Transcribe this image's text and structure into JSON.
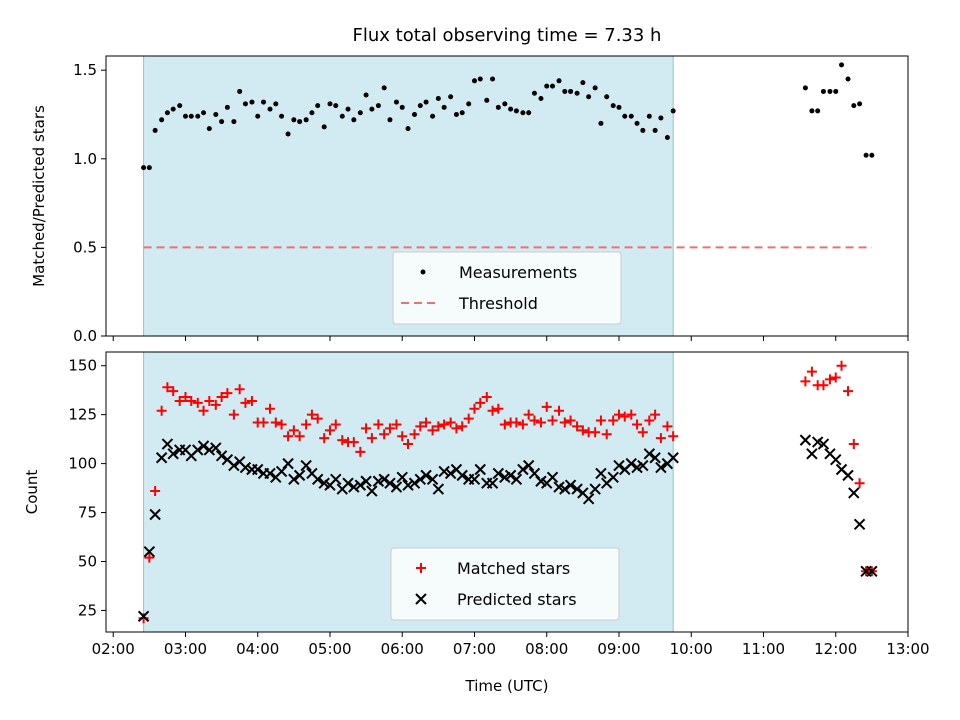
{
  "chart_data": {
    "title": "Flux total observing time = 7.33 h",
    "xlabel": "Time (UTC)",
    "xlim_hours": [
      1.9,
      13.0
    ],
    "x_tick_labels": [
      "02:00",
      "03:00",
      "04:00",
      "05:00",
      "06:00",
      "07:00",
      "08:00",
      "09:00",
      "10:00",
      "11:00",
      "12:00",
      "13:00"
    ],
    "x_tick_values": [
      2,
      3,
      4,
      5,
      6,
      7,
      8,
      9,
      10,
      11,
      12,
      13
    ],
    "observing_window_hours": [
      2.42,
      9.75
    ],
    "observing_window_color": "#add8e6",
    "panels": [
      {
        "type": "scatter",
        "ylabel": "Matched/Predicted stars",
        "ylim": [
          0.0,
          1.58
        ],
        "y_ticks": [
          0.0,
          0.5,
          1.0,
          1.5
        ],
        "y_tick_labels": [
          "0.0",
          "0.5",
          "1.0",
          "1.5"
        ],
        "threshold": {
          "value": 0.5,
          "x_range": [
            2.42,
            12.5
          ],
          "color": "#f07070"
        },
        "legend": {
          "position": "lower center",
          "entries": [
            "Measurements",
            "Threshold"
          ]
        },
        "series": [
          {
            "name": "Measurements",
            "marker": "dot",
            "color": "#000000",
            "x": [
              2.42,
              2.5,
              2.58,
              2.67,
              2.75,
              2.83,
              2.92,
              3.0,
              3.08,
              3.17,
              3.25,
              3.33,
              3.42,
              3.5,
              3.58,
              3.67,
              3.75,
              3.83,
              3.92,
              4.0,
              4.08,
              4.17,
              4.25,
              4.33,
              4.42,
              4.5,
              4.58,
              4.67,
              4.75,
              4.83,
              4.92,
              5.0,
              5.08,
              5.17,
              5.25,
              5.33,
              5.42,
              5.5,
              5.58,
              5.67,
              5.75,
              5.83,
              5.92,
              6.0,
              6.08,
              6.17,
              6.25,
              6.33,
              6.42,
              6.5,
              6.58,
              6.67,
              6.75,
              6.83,
              6.92,
              7.0,
              7.08,
              7.17,
              7.25,
              7.33,
              7.42,
              7.5,
              7.58,
              7.67,
              7.75,
              7.83,
              7.92,
              8.0,
              8.08,
              8.17,
              8.25,
              8.33,
              8.42,
              8.5,
              8.58,
              8.67,
              8.75,
              8.83,
              8.92,
              9.0,
              9.08,
              9.17,
              9.25,
              9.33,
              9.42,
              9.5,
              9.58,
              9.67,
              9.75,
              11.58,
              11.67,
              11.75,
              11.83,
              11.92,
              12.0,
              12.08,
              12.17,
              12.25,
              12.33,
              12.42,
              12.5
            ],
            "y": [
              0.95,
              0.95,
              1.16,
              1.22,
              1.26,
              1.28,
              1.3,
              1.24,
              1.24,
              1.24,
              1.26,
              1.17,
              1.25,
              1.21,
              1.29,
              1.21,
              1.38,
              1.31,
              1.32,
              1.24,
              1.32,
              1.28,
              1.31,
              1.24,
              1.14,
              1.22,
              1.21,
              1.22,
              1.26,
              1.3,
              1.18,
              1.31,
              1.3,
              1.24,
              1.28,
              1.22,
              1.26,
              1.36,
              1.28,
              1.3,
              1.4,
              1.22,
              1.32,
              1.29,
              1.17,
              1.25,
              1.3,
              1.32,
              1.24,
              1.34,
              1.29,
              1.35,
              1.25,
              1.26,
              1.31,
              1.44,
              1.45,
              1.33,
              1.45,
              1.29,
              1.31,
              1.28,
              1.27,
              1.26,
              1.26,
              1.37,
              1.34,
              1.41,
              1.41,
              1.44,
              1.38,
              1.38,
              1.37,
              1.43,
              1.35,
              1.4,
              1.2,
              1.35,
              1.3,
              1.29,
              1.24,
              1.24,
              1.2,
              1.16,
              1.24,
              1.16,
              1.23,
              1.12,
              1.27,
              1.4,
              1.27,
              1.27,
              1.38,
              1.38,
              1.38,
              1.53,
              1.45,
              1.3,
              1.31,
              1.02,
              1.02
            ]
          }
        ]
      },
      {
        "type": "scatter",
        "ylabel": "Count",
        "ylim": [
          14,
          157
        ],
        "y_ticks": [
          25,
          50,
          75,
          100,
          125,
          150
        ],
        "y_tick_labels": [
          "25",
          "50",
          "75",
          "100",
          "125",
          "150"
        ],
        "legend": {
          "position": "lower center",
          "entries": [
            "Matched stars",
            "Predicted stars"
          ]
        },
        "series": [
          {
            "name": "Matched stars",
            "marker": "plus",
            "color": "#ff0000",
            "x": [
              2.42,
              2.5,
              2.58,
              2.67,
              2.75,
              2.83,
              2.92,
              3.0,
              3.08,
              3.17,
              3.25,
              3.33,
              3.42,
              3.5,
              3.58,
              3.67,
              3.75,
              3.83,
              3.92,
              4.0,
              4.08,
              4.17,
              4.25,
              4.33,
              4.42,
              4.5,
              4.58,
              4.67,
              4.75,
              4.83,
              4.92,
              5.0,
              5.08,
              5.17,
              5.25,
              5.33,
              5.42,
              5.5,
              5.58,
              5.67,
              5.75,
              5.83,
              5.92,
              6.0,
              6.08,
              6.17,
              6.25,
              6.33,
              6.42,
              6.5,
              6.58,
              6.67,
              6.75,
              6.83,
              6.92,
              7.0,
              7.08,
              7.17,
              7.25,
              7.33,
              7.42,
              7.5,
              7.58,
              7.67,
              7.75,
              7.83,
              7.92,
              8.0,
              8.08,
              8.17,
              8.25,
              8.33,
              8.42,
              8.5,
              8.58,
              8.67,
              8.75,
              8.83,
              8.92,
              9.0,
              9.08,
              9.17,
              9.25,
              9.33,
              9.42,
              9.5,
              9.58,
              9.67,
              9.75,
              11.58,
              11.67,
              11.75,
              11.83,
              11.92,
              12.0,
              12.08,
              12.17,
              12.25,
              12.33,
              12.42,
              12.5
            ],
            "y": [
              21,
              52,
              86,
              127,
              139,
              137,
              132,
              134,
              132,
              131,
              127,
              132,
              130,
              134,
              136,
              125,
              138,
              131,
              132,
              121,
              121,
              128,
              121,
              120,
              114,
              117,
              114,
              120,
              125,
              123,
              113,
              117,
              120,
              112,
              111,
              111,
              106,
              118,
              113,
              120,
              115,
              118,
              120,
              114,
              110,
              115,
              119,
              121,
              117,
              119,
              120,
              121,
              118,
              119,
              123,
              128,
              131,
              134,
              127,
              128,
              120,
              121,
              121,
              120,
              125,
              122,
              121,
              129,
              122,
              127,
              121,
              122,
              119,
              117,
              116,
              116,
              122,
              115,
              122,
              125,
              124,
              125,
              120,
              116,
              122,
              125,
              113,
              119,
              114,
              142,
              147,
              140,
              140,
              143,
              144,
              150,
              137,
              110,
              90,
              45,
              45
            ]
          },
          {
            "name": "Predicted stars",
            "marker": "x",
            "color": "#000000",
            "x": [
              2.42,
              2.5,
              2.58,
              2.67,
              2.75,
              2.83,
              2.92,
              3.0,
              3.08,
              3.17,
              3.25,
              3.33,
              3.42,
              3.5,
              3.58,
              3.67,
              3.75,
              3.83,
              3.92,
              4.0,
              4.08,
              4.17,
              4.25,
              4.33,
              4.42,
              4.5,
              4.58,
              4.67,
              4.75,
              4.83,
              4.92,
              5.0,
              5.08,
              5.17,
              5.25,
              5.33,
              5.42,
              5.5,
              5.58,
              5.67,
              5.75,
              5.83,
              5.92,
              6.0,
              6.08,
              6.17,
              6.25,
              6.33,
              6.42,
              6.5,
              6.58,
              6.67,
              6.75,
              6.83,
              6.92,
              7.0,
              7.08,
              7.17,
              7.25,
              7.33,
              7.42,
              7.5,
              7.58,
              7.67,
              7.75,
              7.83,
              7.92,
              8.0,
              8.08,
              8.17,
              8.25,
              8.33,
              8.42,
              8.5,
              8.58,
              8.67,
              8.75,
              8.83,
              8.92,
              9.0,
              9.08,
              9.17,
              9.25,
              9.33,
              9.42,
              9.5,
              9.58,
              9.67,
              9.75,
              11.58,
              11.67,
              11.75,
              11.83,
              11.92,
              12.0,
              12.08,
              12.17,
              12.25,
              12.33,
              12.42,
              12.5
            ],
            "y": [
              22,
              55,
              74,
              103,
              110,
              105,
              107,
              107,
              104,
              107,
              109,
              107,
              108,
              104,
              102,
              99,
              101,
              98,
              97,
              97,
              95,
              95,
              93,
              96,
              100,
              92,
              94,
              99,
              95,
              92,
              90,
              89,
              92,
              87,
              90,
              88,
              89,
              91,
              86,
              91,
              92,
              90,
              88,
              93,
              89,
              90,
              92,
              94,
              92,
              87,
              96,
              95,
              97,
              94,
              92,
              92,
              97,
              90,
              90,
              95,
              93,
              94,
              92,
              97,
              99,
              95,
              91,
              90,
              93,
              88,
              87,
              89,
              87,
              85,
              82,
              87,
              95,
              90,
              93,
              99,
              97,
              100,
              98,
              99,
              105,
              103,
              98,
              100,
              103,
              112,
              105,
              111,
              110,
              105,
              102,
              97,
              94,
              85,
              69,
              45,
              45
            ]
          }
        ]
      }
    ]
  }
}
